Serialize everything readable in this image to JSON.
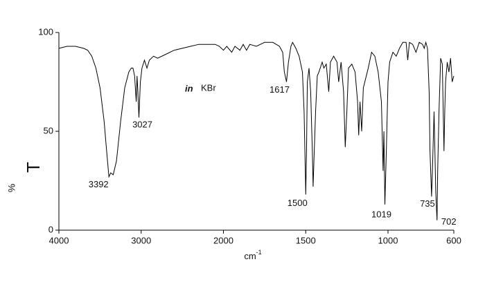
{
  "chart_data": {
    "type": "line",
    "color": "#000000",
    "x_label": "cm",
    "x_label_sup": "-1",
    "y_label_unit": "%",
    "y_label_symbol": "T",
    "icon_text": "in",
    "annotation": "KBr",
    "xlim": [
      4000,
      600
    ],
    "x_scale_change": 2000,
    "xticks": [
      4000,
      3000,
      2000,
      1500,
      1000,
      600
    ],
    "ylim": [
      0,
      100
    ],
    "yticks": [
      0,
      50,
      100
    ],
    "x": [
      4000,
      3900,
      3800,
      3700,
      3650,
      3600,
      3550,
      3500,
      3450,
      3420,
      3392,
      3370,
      3340,
      3300,
      3250,
      3200,
      3150,
      3120,
      3100,
      3080,
      3060,
      3050,
      3040,
      3027,
      3010,
      2990,
      2960,
      2930,
      2900,
      2850,
      2800,
      2700,
      2600,
      2500,
      2400,
      2300,
      2200,
      2100,
      2050,
      2000,
      1980,
      1950,
      1930,
      1900,
      1880,
      1860,
      1840,
      1800,
      1750,
      1700,
      1660,
      1640,
      1630,
      1617,
      1605,
      1590,
      1580,
      1560,
      1540,
      1520,
      1510,
      1500,
      1495,
      1490,
      1480,
      1470,
      1460,
      1455,
      1450,
      1440,
      1430,
      1420,
      1400,
      1390,
      1375,
      1360,
      1350,
      1330,
      1310,
      1300,
      1285,
      1270,
      1260,
      1250,
      1240,
      1220,
      1200,
      1185,
      1178,
      1170,
      1160,
      1150,
      1120,
      1100,
      1080,
      1060,
      1040,
      1030,
      1025,
      1019,
      1010,
      1000,
      990,
      970,
      950,
      930,
      910,
      890,
      880,
      870,
      850,
      830,
      810,
      790,
      780,
      770,
      760,
      750,
      745,
      735,
      730,
      720,
      715,
      710,
      705,
      702,
      698,
      690,
      680,
      670,
      660,
      655,
      650,
      640,
      630,
      620,
      610,
      600
    ],
    "values": [
      92,
      93,
      93,
      92,
      91,
      88,
      82,
      72,
      55,
      40,
      27,
      29,
      28,
      35,
      55,
      72,
      80,
      82,
      82,
      78,
      65,
      78,
      70,
      57,
      75,
      82,
      86,
      82,
      86,
      88,
      87,
      89,
      91,
      92,
      93,
      94,
      94,
      94,
      93,
      91,
      93,
      90,
      93,
      91,
      94,
      91,
      94,
      93,
      95,
      95,
      93,
      90,
      80,
      75,
      85,
      93,
      95,
      92,
      88,
      80,
      60,
      18,
      40,
      75,
      82,
      70,
      40,
      22,
      35,
      60,
      78,
      80,
      85,
      82,
      84,
      70,
      85,
      88,
      85,
      75,
      85,
      70,
      42,
      60,
      82,
      84,
      80,
      65,
      48,
      65,
      50,
      72,
      82,
      90,
      88,
      80,
      65,
      30,
      50,
      13,
      40,
      75,
      85,
      90,
      88,
      92,
      95,
      95,
      86,
      95,
      94,
      90,
      95,
      94,
      92,
      95,
      92,
      70,
      40,
      17,
      30,
      60,
      40,
      20,
      10,
      5,
      30,
      60,
      87,
      84,
      40,
      60,
      75,
      85,
      80,
      87,
      75,
      78
    ],
    "peaks": [
      {
        "x": 3392,
        "y": 27
      },
      {
        "x": 3027,
        "y": 57
      },
      {
        "x": 1617,
        "y": 75
      },
      {
        "x": 1500,
        "y": 18
      },
      {
        "x": 1019,
        "y": 13
      },
      {
        "x": 735,
        "y": 17
      },
      {
        "x": 702,
        "y": 5
      }
    ]
  }
}
